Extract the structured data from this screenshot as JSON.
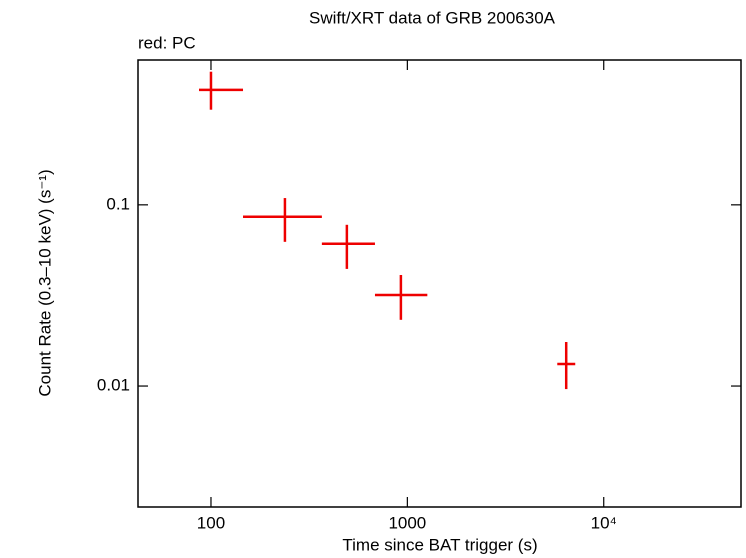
{
  "chart_data": {
    "type": "errorbar-scatter",
    "title": "Swift/XRT data of GRB 200630A",
    "subtitle": "red: PC",
    "x_label": "Time since BAT trigger (s)",
    "y_label": "Count Rate (0.3–10 keV) (s⁻¹)",
    "x_scale": "log",
    "y_scale": "log",
    "xlim": [
      42.5,
      50000
    ],
    "ylim": [
      0.00215,
      0.63
    ],
    "xticks": [
      100,
      1000,
      {
        "value": 10000,
        "label": "10⁴"
      }
    ],
    "yticks": [
      0.01,
      0.1
    ],
    "series": [
      {
        "name": "PC",
        "color": "#ee0000",
        "x": [
          100,
          238,
          492,
          927,
          6440
        ],
        "x_lo": [
          86.9,
          145.6,
          367,
          684,
          5800
        ],
        "x_hi": [
          145.6,
          367,
          684,
          1264,
          7160
        ],
        "values": [
          0.431,
          0.0859,
          0.061,
          0.0318,
          0.01324
        ],
        "y_lo": [
          0.335,
          0.0625,
          0.0443,
          0.0232,
          0.00962
        ],
        "y_hi": [
          0.543,
          0.109,
          0.0776,
          0.041,
          0.0175
        ]
      }
    ]
  }
}
